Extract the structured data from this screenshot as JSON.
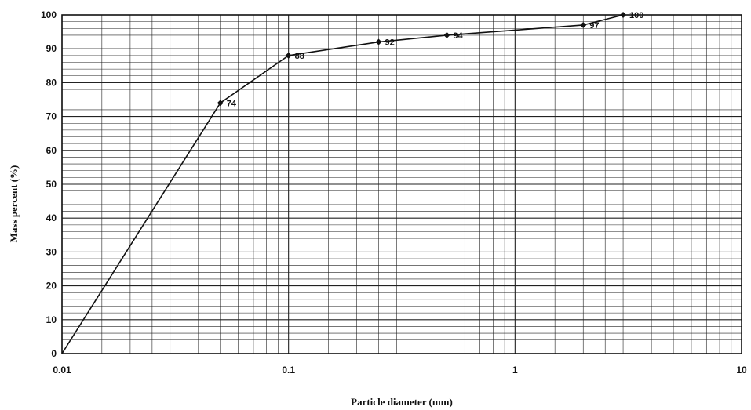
{
  "chart_data": {
    "type": "line",
    "xscale": "log",
    "xlim": [
      0.01,
      10
    ],
    "ylim": [
      0,
      100
    ],
    "xlabel": "Particle diameter (mm)",
    "ylabel": "Mass percent (%)",
    "title": "",
    "grid": true,
    "x_ticks": [
      "0.01",
      "0.1",
      "1",
      "10"
    ],
    "y_ticks": [
      "0",
      "10",
      "20",
      "30",
      "40",
      "50",
      "60",
      "70",
      "80",
      "90",
      "100"
    ],
    "series": [
      {
        "x": [
          0.01,
          0.05,
          0.1,
          0.25,
          0.5,
          2,
          3
        ],
        "y": [
          0,
          74,
          88,
          92,
          94,
          97,
          100
        ],
        "labels": [
          "",
          "74",
          "88",
          "92",
          "94",
          "97",
          "100"
        ]
      }
    ],
    "colors": {
      "line": "#111111",
      "grid": "#222222"
    }
  }
}
